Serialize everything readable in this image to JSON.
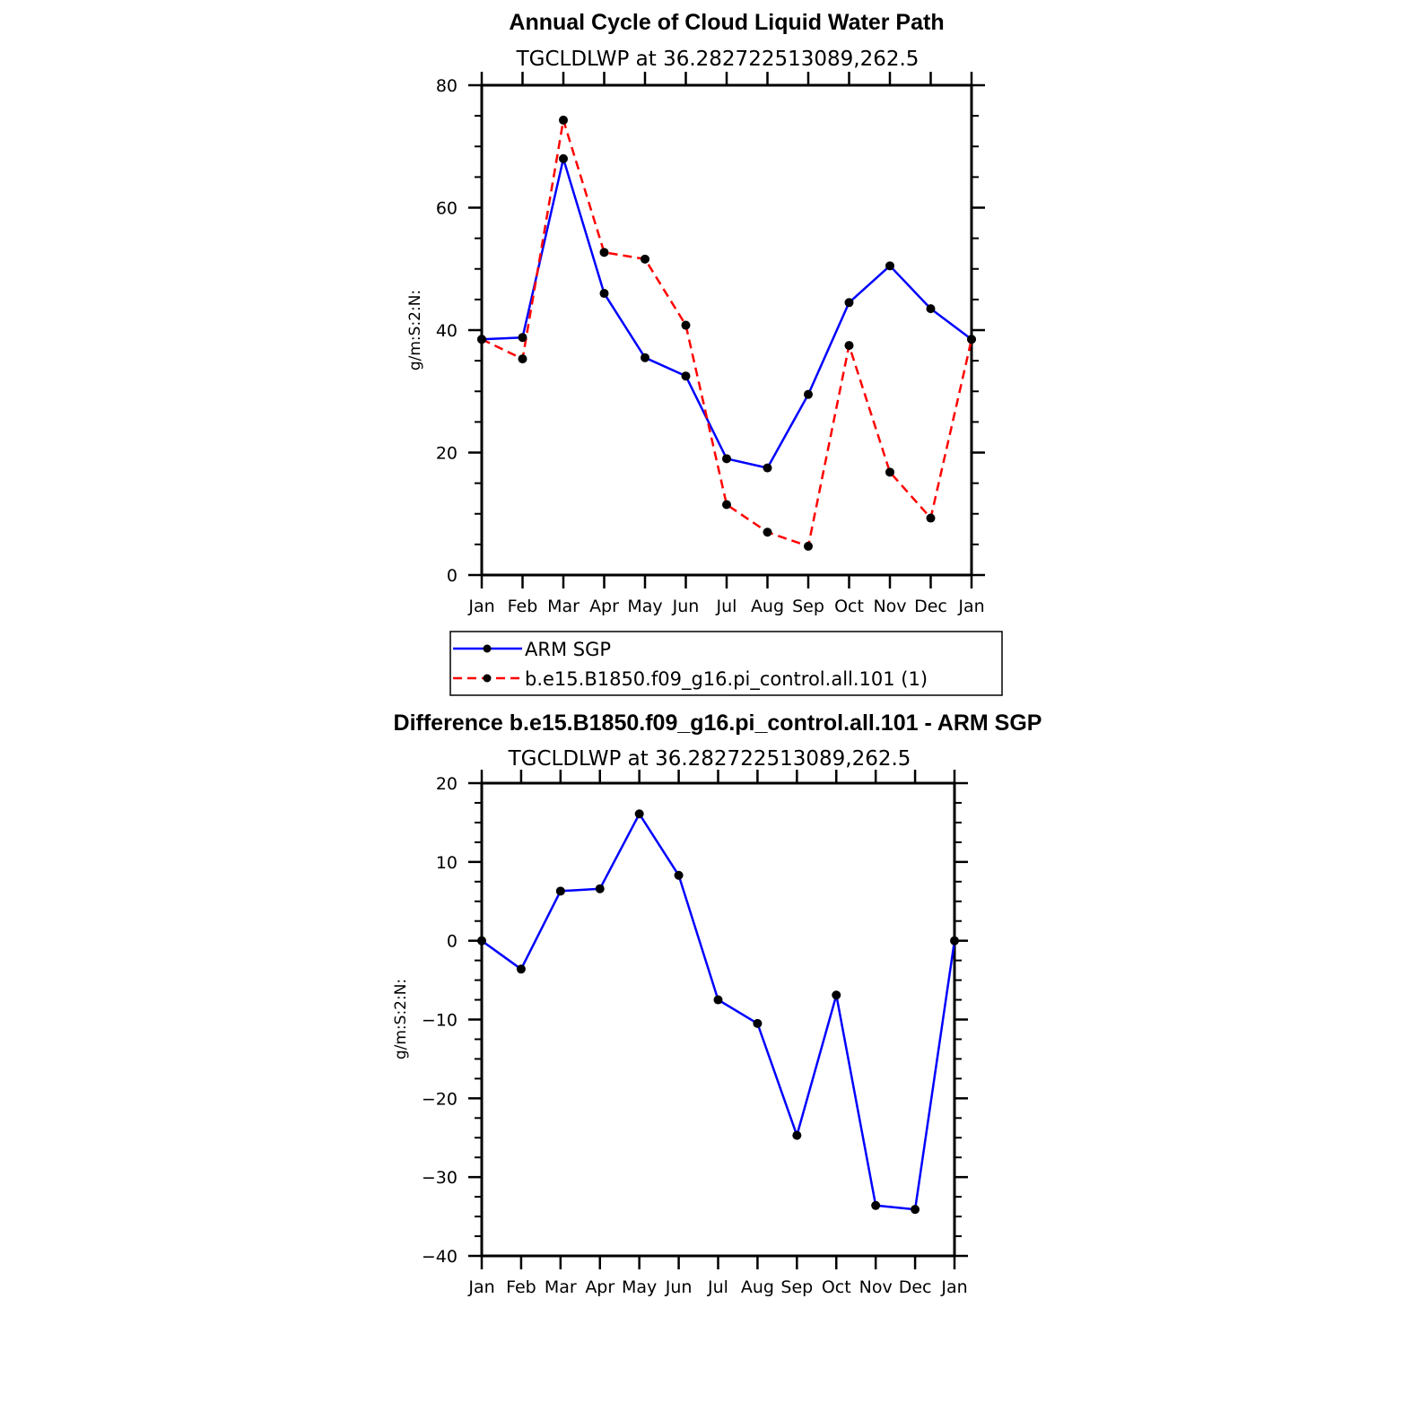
{
  "chart_data": [
    {
      "type": "line",
      "title": "Annual Cycle of Cloud Liquid Water Path",
      "subtitle": "TGCLDLWP  at  36.282722513089,262.5",
      "ylabel": "g/m:S:2:N:",
      "xlabel": "",
      "categories": [
        "Jan",
        "Feb",
        "Mar",
        "Apr",
        "May",
        "Jun",
        "Jul",
        "Aug",
        "Sep",
        "Oct",
        "Nov",
        "Dec",
        "Jan"
      ],
      "ylim": [
        0,
        80
      ],
      "yticks": [
        0,
        20,
        40,
        60,
        80
      ],
      "grid": false,
      "legend_position": "bottom",
      "series": [
        {
          "name": "ARM  SGP",
          "color": "#0000ff",
          "dash": "solid",
          "values": [
            38.5,
            38.8,
            68.0,
            46.0,
            35.5,
            32.5,
            19.0,
            17.5,
            29.5,
            44.5,
            50.5,
            43.5,
            38.5
          ]
        },
        {
          "name": "b.e15.B1850.f09_g16.pi_control.all.101  (1)",
          "color": "#ff0000",
          "dash": "dashed",
          "values": [
            38.5,
            35.3,
            74.3,
            52.7,
            51.6,
            40.8,
            11.5,
            7.0,
            4.7,
            37.5,
            16.8,
            9.3,
            38.5
          ]
        }
      ]
    },
    {
      "type": "line",
      "title": "Difference b.e15.B1850.f09_g16.pi_control.all.101 - ARM SGP",
      "subtitle": "TGCLDLWP  at  36.282722513089,262.5",
      "ylabel": "g/m:S:2:N:",
      "xlabel": "",
      "categories": [
        "Jan",
        "Feb",
        "Mar",
        "Apr",
        "May",
        "Jun",
        "Jul",
        "Aug",
        "Sep",
        "Oct",
        "Nov",
        "Dec",
        "Jan"
      ],
      "ylim": [
        -40,
        20
      ],
      "yticks": [
        -40,
        -30,
        -20,
        -10,
        0,
        10,
        20
      ],
      "ytick_labels": [
        "−40",
        "−30",
        "−20",
        "−10",
        "0",
        "10",
        "20"
      ],
      "grid": false,
      "series": [
        {
          "name": "",
          "color": "#0000ff",
          "dash": "solid",
          "values": [
            0,
            -3.6,
            6.3,
            6.6,
            16.1,
            8.3,
            -7.5,
            -10.5,
            -24.7,
            -6.9,
            -33.6,
            -34.1,
            0
          ]
        }
      ]
    }
  ]
}
